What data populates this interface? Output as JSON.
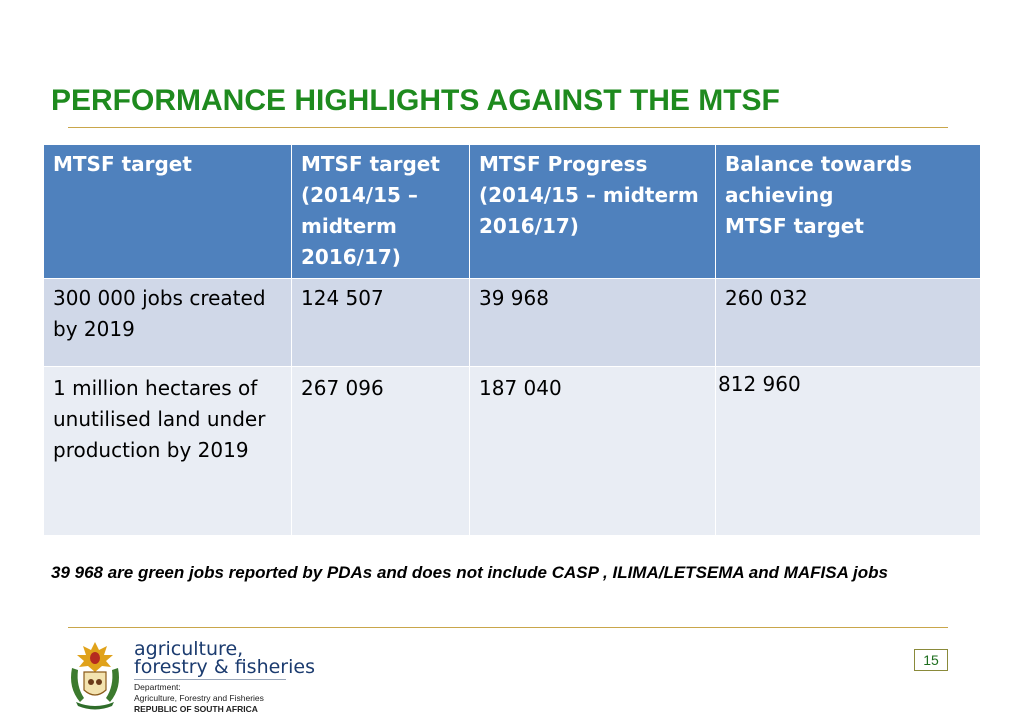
{
  "title": "PERFORMANCE HIGHLIGHTS AGAINST THE MTSF",
  "table": {
    "headers": [
      [
        "MTSF target"
      ],
      [
        "MTSF target",
        "(2014/15 –",
        "midterm",
        "2016/17)"
      ],
      [
        "MTSF Progress",
        "(2014/15 –  midterm",
        "2016/17)"
      ],
      [
        "Balance towards",
        "achieving",
        "MTSF target"
      ]
    ],
    "rows": [
      {
        "target": "300  000  jobs  created by 2019",
        "midterm_target": "124 507",
        "progress": "39 968",
        "balance": "260 032"
      },
      {
        "target_lines": [
          "1 million hectares of",
          "unutilised land under",
          "production by 2019"
        ],
        "midterm_target": "267 096",
        "progress": "187 040",
        "balance": "812 960"
      }
    ]
  },
  "note": "39 968 are green jobs reported by  PDAs  and does not include CASP , ILIMA/LETSEMA and MAFISA jobs",
  "logo": {
    "line1": "agriculture,",
    "line2": "forestry & fisheries",
    "dept_lines": [
      "Department:",
      "Agriculture, Forestry and Fisheries"
    ],
    "country": "REPUBLIC OF SOUTH AFRICA"
  },
  "page_number": "15",
  "colors": {
    "title": "#1e8a1e",
    "header_bg": "#4f81bd",
    "row1_bg": "#d0d8e8",
    "row2_bg": "#e9edf4",
    "rule": "#c9a64a"
  }
}
